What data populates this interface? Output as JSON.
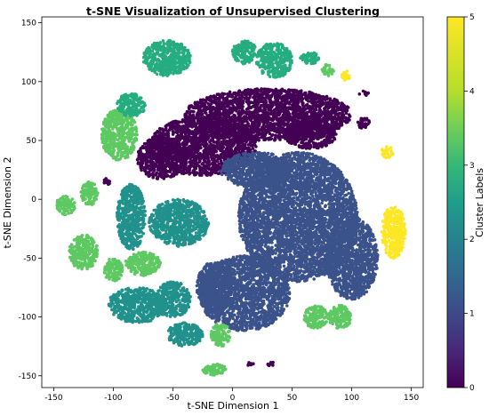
{
  "chart_data": {
    "type": "scatter",
    "title": "t-SNE Visualization of Unsupervised Clustering",
    "xlabel": "t-SNE Dimension 1",
    "ylabel": "t-SNE Dimension 2",
    "xlim": [
      -160,
      160
    ],
    "ylim": [
      -160,
      155
    ],
    "xticks": [
      -150,
      -100,
      -50,
      0,
      50,
      100,
      150
    ],
    "yticks": [
      -150,
      -100,
      -50,
      0,
      50,
      100,
      150
    ],
    "grid": false,
    "colorbar": {
      "label": "Cluster Labels",
      "range": [
        0,
        5
      ],
      "ticks": [
        0,
        1,
        2,
        3,
        4,
        5
      ],
      "colormap": "viridis",
      "colors": [
        "#440154",
        "#3b528b",
        "#21918c",
        "#5ec962",
        "#fde725"
      ]
    },
    "point_marker": "dense filled circles",
    "series": [
      {
        "cluster": 0,
        "color": "#440154",
        "regions": [
          {
            "cx": 30,
            "cy": 72,
            "rx": 70,
            "ry": 22
          },
          {
            "cx": -25,
            "cy": 45,
            "rx": 45,
            "ry": 25
          },
          {
            "cx": -60,
            "cy": 35,
            "rx": 20,
            "ry": 18
          },
          {
            "cx": 65,
            "cy": 55,
            "rx": 22,
            "ry": 12
          },
          {
            "cx": 110,
            "cy": 65,
            "rx": 5,
            "ry": 5
          },
          {
            "cx": -105,
            "cy": 15,
            "rx": 3,
            "ry": 3
          },
          {
            "cx": 110,
            "cy": 90,
            "rx": 4,
            "ry": 2
          },
          {
            "cx": 15,
            "cy": -140,
            "rx": 3,
            "ry": 2
          },
          {
            "cx": 32,
            "cy": -140,
            "rx": 3,
            "ry": 2
          }
        ]
      },
      {
        "cluster": 1,
        "color": "#3b528b",
        "regions": [
          {
            "cx": 55,
            "cy": -15,
            "rx": 50,
            "ry": 55
          },
          {
            "cx": 20,
            "cy": 25,
            "rx": 30,
            "ry": 15
          },
          {
            "cx": 10,
            "cy": -80,
            "rx": 38,
            "ry": 32
          },
          {
            "cx": 100,
            "cy": -50,
            "rx": 22,
            "ry": 35
          },
          {
            "cx": -15,
            "cy": -75,
            "rx": 15,
            "ry": 22
          }
        ]
      },
      {
        "cluster": 2,
        "color": "#21918c",
        "regions": [
          {
            "cx": -45,
            "cy": -20,
            "rx": 25,
            "ry": 20
          },
          {
            "cx": -85,
            "cy": -15,
            "rx": 12,
            "ry": 28
          },
          {
            "cx": -80,
            "cy": -90,
            "rx": 25,
            "ry": 15
          },
          {
            "cx": -50,
            "cy": -85,
            "rx": 15,
            "ry": 15
          },
          {
            "cx": -40,
            "cy": -115,
            "rx": 15,
            "ry": 10
          }
        ]
      },
      {
        "cluster": 3,
        "color": "#5ec962",
        "regions": [
          {
            "cx": -140,
            "cy": -5,
            "rx": 8,
            "ry": 8
          },
          {
            "cx": -120,
            "cy": 5,
            "rx": 7,
            "ry": 10
          },
          {
            "cx": -125,
            "cy": -45,
            "rx": 12,
            "ry": 15
          },
          {
            "cx": -100,
            "cy": -60,
            "rx": 8,
            "ry": 10
          },
          {
            "cx": -75,
            "cy": -55,
            "rx": 15,
            "ry": 10
          },
          {
            "cx": -95,
            "cy": 55,
            "rx": 15,
            "ry": 22
          },
          {
            "cx": 90,
            "cy": -100,
            "rx": 10,
            "ry": 10
          },
          {
            "cx": 70,
            "cy": -100,
            "rx": 10,
            "ry": 10
          },
          {
            "cx": -10,
            "cy": -115,
            "rx": 8,
            "ry": 10
          },
          {
            "cx": -15,
            "cy": -145,
            "rx": 10,
            "ry": 5
          },
          {
            "cx": 80,
            "cy": 110,
            "rx": 5,
            "ry": 5
          }
        ]
      },
      {
        "cluster": 4,
        "color": "#fde725",
        "regions": [
          {
            "cx": 135,
            "cy": -28,
            "rx": 10,
            "ry": 22
          },
          {
            "cx": 130,
            "cy": 40,
            "rx": 5,
            "ry": 5
          },
          {
            "cx": 95,
            "cy": 105,
            "rx": 4,
            "ry": 4
          }
        ]
      },
      {
        "cluster": "2-3",
        "color": "#25ad80",
        "regions": [
          {
            "cx": -55,
            "cy": 120,
            "rx": 20,
            "ry": 15
          },
          {
            "cx": 35,
            "cy": 118,
            "rx": 15,
            "ry": 15
          },
          {
            "cx": 10,
            "cy": 125,
            "rx": 10,
            "ry": 10
          },
          {
            "cx": -85,
            "cy": 80,
            "rx": 12,
            "ry": 10
          },
          {
            "cx": 65,
            "cy": 120,
            "rx": 8,
            "ry": 5
          }
        ]
      }
    ]
  }
}
